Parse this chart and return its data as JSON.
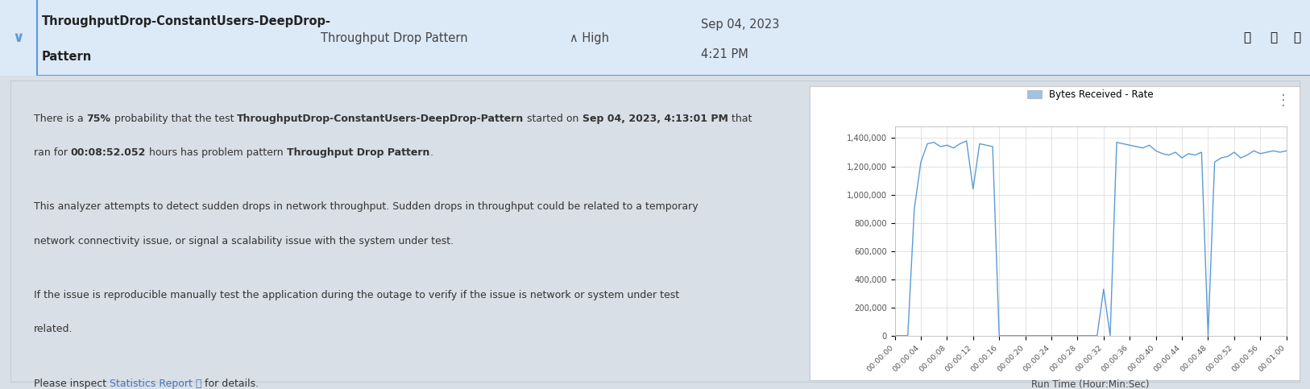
{
  "header_bg": "#dce9f7",
  "header_border": "#5b9bd5",
  "body_bg": "#d8dfe6",
  "card_bg": "#ffffff",
  "text_color": "#333333",
  "link_color": "#4472c4",
  "chart_line_color": "#5b9bd5",
  "chart_legend_color": "#9dc3e6",
  "chart_bg": "#ffffff",
  "chart_grid_color": "#d8d8d8",
  "chart_yticks": [
    0,
    200000,
    400000,
    600000,
    800000,
    1000000,
    1200000,
    1400000
  ],
  "chart_ytick_labels": [
    "0",
    "200,000",
    "400,000",
    "600,000",
    "800,000",
    "1,000,000",
    "1,200,000",
    "1,400,000"
  ],
  "chart_xtick_labels": [
    "00:00:00",
    "00:00:04",
    "00:00:08",
    "00:00:12",
    "00:00:16",
    "00:00:20",
    "00:00:24",
    "00:00:28",
    "00:00:32",
    "00:00:36",
    "00:00:40",
    "00:00:44",
    "00:00:48",
    "00:00:52",
    "00:00:56",
    "00:01:00"
  ],
  "x_values": [
    0,
    1,
    2,
    3,
    4,
    5,
    6,
    7,
    8,
    9,
    10,
    11,
    12,
    13,
    14,
    15,
    16,
    17,
    18,
    19,
    20,
    21,
    22,
    23,
    24,
    25,
    26,
    27,
    28,
    29,
    30,
    31,
    32,
    33,
    34,
    35,
    36,
    37,
    38,
    39,
    40,
    41,
    42,
    43,
    44,
    45,
    46,
    47,
    48,
    49,
    50,
    51,
    52,
    53,
    54,
    55,
    56,
    57,
    58,
    59,
    60
  ],
  "y_values": [
    0,
    0,
    0,
    900000,
    1230000,
    1360000,
    1370000,
    1340000,
    1350000,
    1330000,
    1360000,
    1380000,
    1040000,
    1360000,
    1350000,
    1340000,
    0,
    0,
    0,
    0,
    0,
    0,
    0,
    0,
    0,
    0,
    0,
    0,
    0,
    0,
    0,
    0,
    330000,
    0,
    1370000,
    1360000,
    1350000,
    1340000,
    1330000,
    1350000,
    1310000,
    1290000,
    1280000,
    1300000,
    1260000,
    1290000,
    1280000,
    1300000,
    0,
    1230000,
    1260000,
    1270000,
    1300000,
    1260000,
    1280000,
    1310000,
    1290000,
    1300000,
    1310000,
    1300000,
    1310000
  ]
}
